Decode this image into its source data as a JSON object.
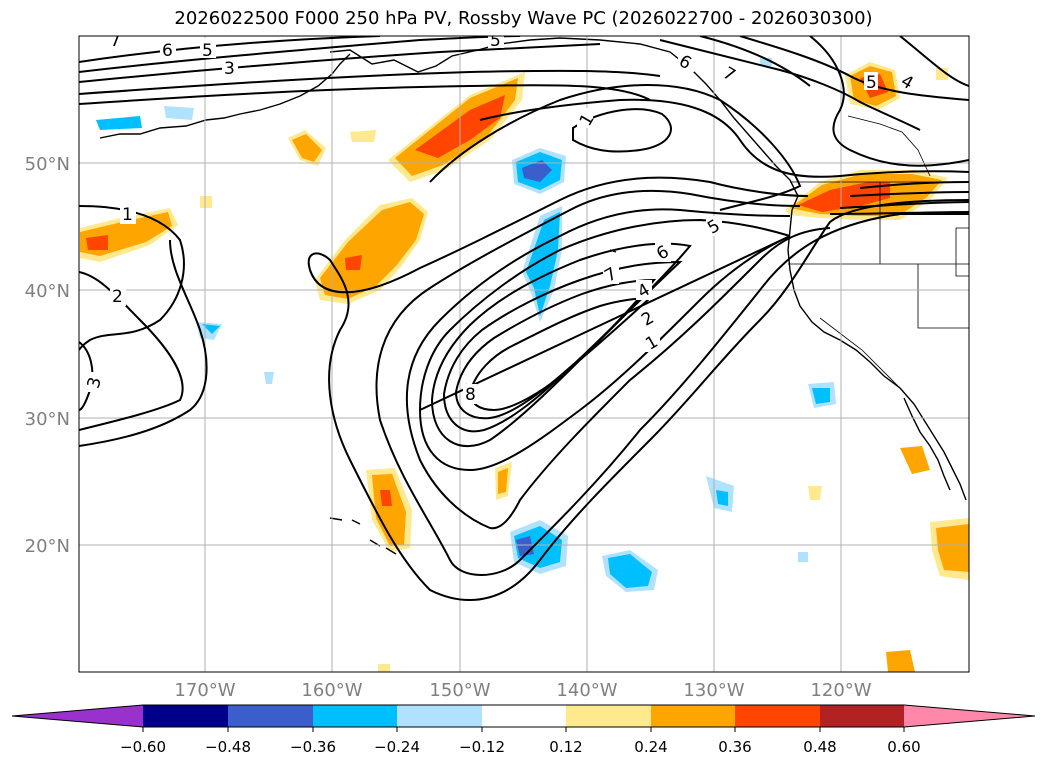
{
  "title": "2026022500 F000 250 hPa PV, Rossby Wave PC (2026022700 - 2026030300)",
  "lat_labels": [
    "50°N",
    "40°N",
    "30°N",
    "20°N"
  ],
  "lon_labels": [
    "170°W",
    "160°W",
    "150°W",
    "140°W",
    "130°W",
    "120°W"
  ],
  "contour_labels": [
    "7",
    "6",
    "5",
    "5",
    "3",
    "1",
    "1",
    "2",
    "3",
    "7",
    "6",
    "5",
    "4",
    "2",
    "1",
    "8",
    "6",
    "7",
    "5",
    "4"
  ],
  "colorbar": {
    "colors": [
      "#9932cc",
      "#00008b",
      "#3a5fcd",
      "#00bfff",
      "#b0e2ff",
      "#ffffff",
      "#ffe98e",
      "#ffa500",
      "#ff4500",
      "#b22222",
      "#ff88aa"
    ],
    "tick_labels": [
      "−0.60",
      "−0.48",
      "−0.36",
      "−0.24",
      "−0.12",
      "0.12",
      "0.24",
      "0.36",
      "0.48",
      "0.60"
    ],
    "thresholds": [
      -0.6,
      -0.48,
      -0.36,
      -0.24,
      -0.12,
      0.12,
      0.24,
      0.36,
      0.48,
      0.6
    ]
  },
  "colors": {
    "grid": "#b0b0b0",
    "axis_label": "#808080",
    "contour": "#000000"
  }
}
